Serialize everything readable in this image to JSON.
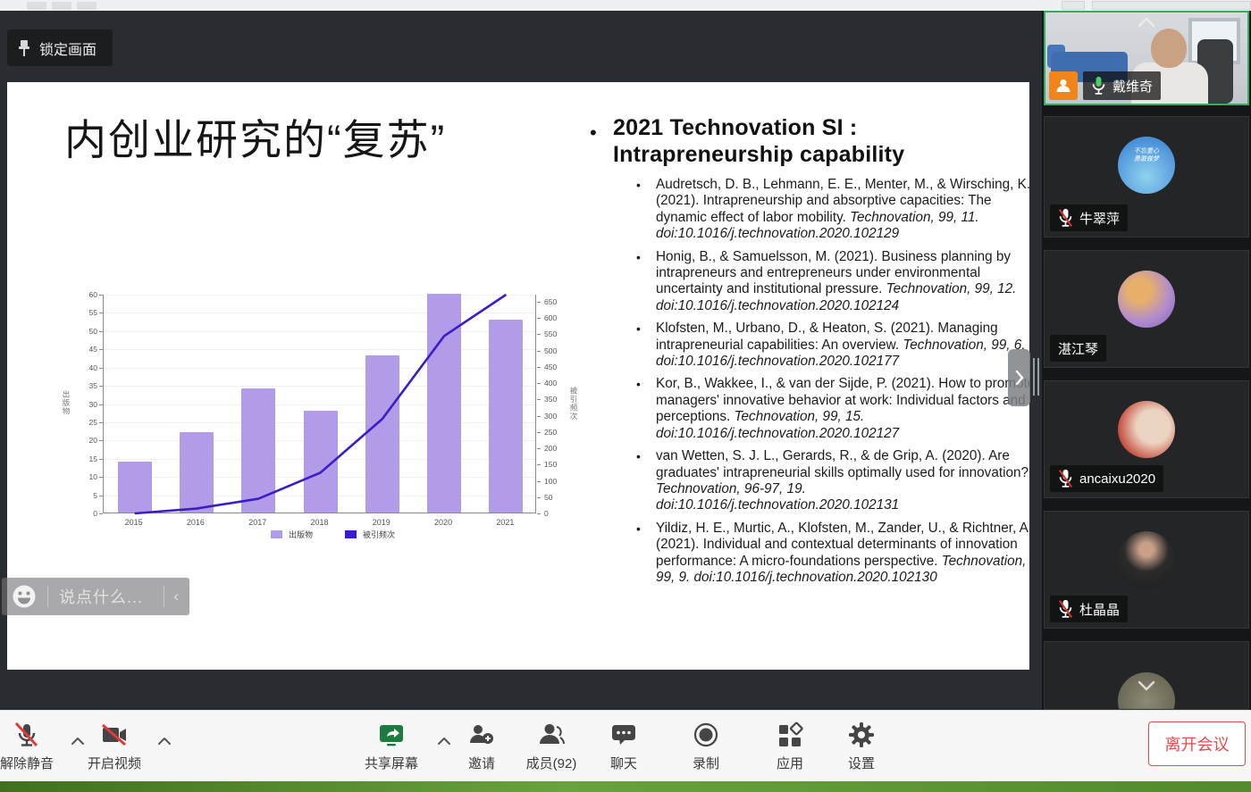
{
  "top_bar": {
    "lock_label": "锁定画面",
    "lock_icon": "pin-icon"
  },
  "slide": {
    "title": "内创业研究的“复苏”",
    "heading_bullet": "•",
    "heading_line1": "2021 Technovation SI :",
    "heading_line2": "Intrapreneurship capability",
    "references": [
      [
        {
          "t": "Audretsch, D. B., Lehmann, E. E., Menter, M., & Wirsching, K. (2021). Intrapreneurship and absorptive capacities: The dynamic effect of labor mobility. ",
          "i": false
        },
        {
          "t": "Technovation, 99, 11. doi:10.1016/j.technovation.2020.102129",
          "i": true
        }
      ],
      [
        {
          "t": "Honig, B., & Samuelsson, M. (2021). Business planning by intrapreneurs and entrepreneurs under environmental uncertainty and institutional pressure. ",
          "i": false
        },
        {
          "t": "Technovation, 99, 12. doi:10.1016/j.technovation.2020.102124",
          "i": true
        }
      ],
      [
        {
          "t": "Klofsten, M., Urbano, D., & Heaton, S. (2021). Managing intrapreneurial capabilities: An overview. ",
          "i": false
        },
        {
          "t": "Technovation, 99, 6. doi:10.1016/j.technovation.2020.102177",
          "i": true
        }
      ],
      [
        {
          "t": "Kor, B., Wakkee, I., & van der Sijde, P. (2021). How to promote managers' innovative behavior at work: Individual factors and perceptions. ",
          "i": false
        },
        {
          "t": "Technovation, 99, 15. doi:10.1016/j.technovation.2020.102127",
          "i": true
        }
      ],
      [
        {
          "t": "van Wetten, S. J. L., Gerards, R., & de Grip, A. (2020). Are graduates' intrapreneurial skills optimally used for innovation? ",
          "i": false
        },
        {
          "t": "Technovation, 96-97, 19. doi:10.1016/j.technovation.2020.102131",
          "i": true
        }
      ],
      [
        {
          "t": "Yildiz, H. E., Murtic, A., Klofsten, M., Zander, U., & Richtner, A. (2021). Individual and contextual determinants of innovation performance: A micro-foundations perspective. ",
          "i": false
        },
        {
          "t": "Technovation, 99, 9. doi:10.1016/j.technovation.2020.102130",
          "i": true
        }
      ]
    ]
  },
  "chart_data": {
    "type": "bar",
    "categories": [
      "2015",
      "2016",
      "2017",
      "2018",
      "2019",
      "2020",
      "2021"
    ],
    "series": [
      {
        "name": "出版物",
        "type": "bar",
        "values": [
          14,
          22,
          34,
          28,
          43,
          60,
          53
        ],
        "color": "#b29be8",
        "axis": "left"
      },
      {
        "name": "被引频次",
        "type": "line",
        "values": [
          0,
          15,
          45,
          125,
          290,
          545,
          672
        ],
        "color": "#3b1dc8",
        "axis": "right"
      }
    ],
    "left_axis": {
      "label": "出版物",
      "min": 0,
      "max": 60,
      "step": 5
    },
    "right_axis": {
      "label": "被引频次",
      "min": 0,
      "max": 672,
      "tick_max": 650,
      "step": 50
    },
    "legend": [
      "出版物",
      "被引频次"
    ],
    "legend_position": "bottom",
    "grid": true,
    "title": ""
  },
  "chat_bar": {
    "placeholder": "说点什么...",
    "emoji_icon": "emoji-icon",
    "collapse_glyph": "‹"
  },
  "sidebar": {
    "collapse_icon": "chevron-right-icon",
    "participants": [
      {
        "name": "戴维奇",
        "mic": "on",
        "video": true,
        "active_speaker": true,
        "role_badge": "member-orange-icon",
        "overlay": "chevron-up-icon"
      },
      {
        "name": "牛翠萍",
        "mic": "muted",
        "avatar": "dream-illustration",
        "avatar_caption1": "不忘童心",
        "avatar_caption2": "勇敢做梦"
      },
      {
        "name": "湛江琴",
        "mic": "hidden",
        "avatar": "cartoon-character"
      },
      {
        "name": "ancaixu2020",
        "mic": "muted",
        "avatar": "child-photo"
      },
      {
        "name": "杜晶晶",
        "mic": "muted",
        "avatar": "portrait-dark"
      },
      {
        "name": "",
        "mic": "hidden",
        "avatar": "partial-photo",
        "partial": true,
        "overlay": "chevron-down-icon"
      }
    ]
  },
  "bottom_toolbar": {
    "member_count": "92",
    "items": [
      {
        "label": "解除静音",
        "icon": "mic-muted-icon",
        "chevron": true
      },
      {
        "label": "开启视频",
        "icon": "camera-off-icon",
        "chevron": true
      },
      {
        "label": "共享屏幕",
        "icon": "share-screen-icon",
        "chevron": true
      },
      {
        "label": "邀请",
        "icon": "invite-icon",
        "chevron": false
      },
      {
        "label": "成员(92)",
        "icon": "members-icon",
        "chevron": false
      },
      {
        "label": "聊天",
        "icon": "chat-icon",
        "chevron": false
      },
      {
        "label": "录制",
        "icon": "record-icon",
        "chevron": false
      },
      {
        "label": "应用",
        "icon": "apps-icon",
        "chevron": false
      },
      {
        "label": "设置",
        "icon": "settings-icon",
        "chevron": false
      }
    ],
    "leave_label": "离开会议"
  },
  "colors": {
    "accent_green": "#2fae5b",
    "bar_purple": "#b29be8",
    "line_blue": "#3b1dc8",
    "leave_red": "#e64a4a",
    "share_green": "#1c7c3f",
    "badge_orange": "#f08519",
    "bottom_strip_green": "#69a23c"
  }
}
